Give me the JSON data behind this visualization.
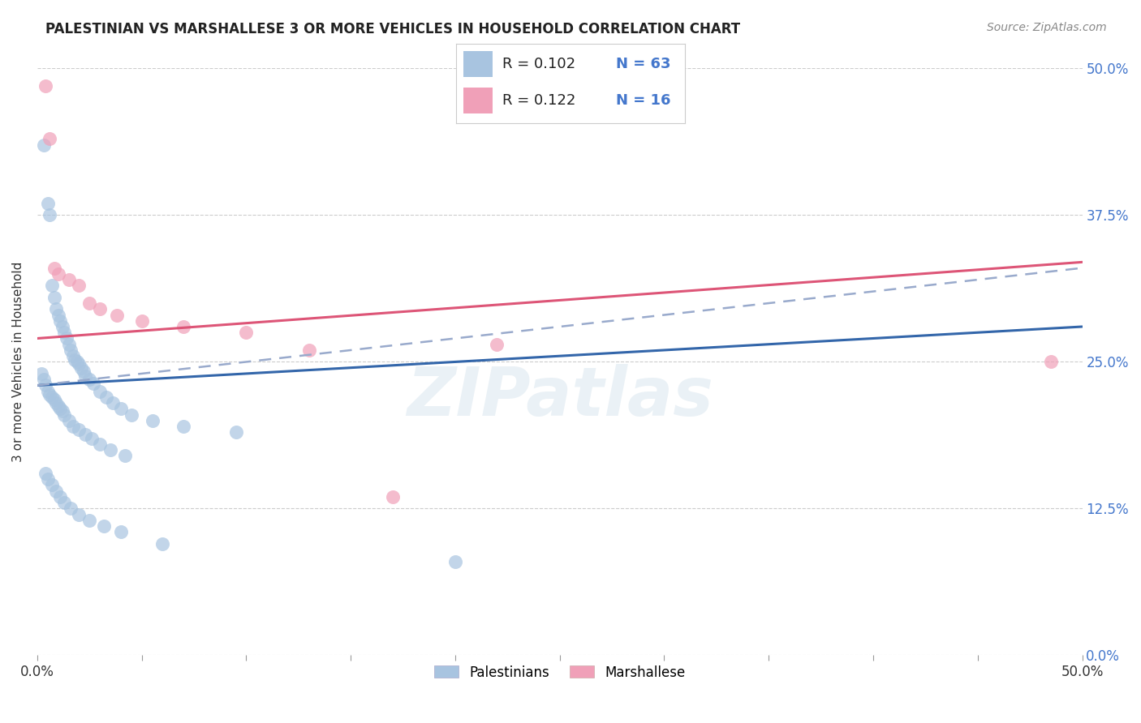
{
  "title": "PALESTINIAN VS MARSHALLESE 3 OR MORE VEHICLES IN HOUSEHOLD CORRELATION CHART",
  "source": "Source: ZipAtlas.com",
  "ylabel": "3 or more Vehicles in Household",
  "xlim": [
    0.0,
    50.0
  ],
  "ylim": [
    0.0,
    50.0
  ],
  "ytick_values": [
    0.0,
    12.5,
    25.0,
    37.5,
    50.0
  ],
  "xtick_minor_values": [
    0.0,
    5.0,
    10.0,
    15.0,
    20.0,
    25.0,
    30.0,
    35.0,
    40.0,
    45.0,
    50.0
  ],
  "watermark": "ZIPatlas",
  "legend_r1": "R = 0.102",
  "legend_n1": "N = 63",
  "legend_r2": "R = 0.122",
  "legend_n2": "N = 16",
  "palestinians_color": "#a8c4e0",
  "marshallese_color": "#f0a0b8",
  "trend_blue_color": "#3366aa",
  "trend_pink_color": "#dd5577",
  "trend_dash_color": "#99aacc",
  "palestinians_label": "Palestinians",
  "marshallese_label": "Marshallese",
  "palestinians_x": [
    0.3,
    0.5,
    0.6,
    0.7,
    0.8,
    0.9,
    1.0,
    1.1,
    1.2,
    1.3,
    1.4,
    1.5,
    1.6,
    1.7,
    1.8,
    1.9,
    2.0,
    2.1,
    2.2,
    2.3,
    2.5,
    2.7,
    3.0,
    3.3,
    3.6,
    4.0,
    4.5,
    5.5,
    7.0,
    9.5,
    0.2,
    0.3,
    0.4,
    0.5,
    0.6,
    0.7,
    0.8,
    0.9,
    1.0,
    1.1,
    1.2,
    1.3,
    1.5,
    1.7,
    2.0,
    2.3,
    2.6,
    3.0,
    3.5,
    4.2,
    0.4,
    0.5,
    0.7,
    0.9,
    1.1,
    1.3,
    1.6,
    2.0,
    2.5,
    3.2,
    4.0,
    6.0,
    20.0
  ],
  "palestinians_y": [
    43.5,
    38.5,
    37.5,
    31.5,
    30.5,
    29.5,
    29.0,
    28.5,
    28.0,
    27.5,
    27.0,
    26.5,
    26.0,
    25.5,
    25.2,
    25.0,
    24.8,
    24.5,
    24.2,
    23.8,
    23.5,
    23.2,
    22.5,
    22.0,
    21.5,
    21.0,
    20.5,
    20.0,
    19.5,
    19.0,
    24.0,
    23.5,
    23.0,
    22.5,
    22.2,
    22.0,
    21.8,
    21.5,
    21.2,
    21.0,
    20.8,
    20.5,
    20.0,
    19.5,
    19.2,
    18.8,
    18.5,
    18.0,
    17.5,
    17.0,
    15.5,
    15.0,
    14.5,
    14.0,
    13.5,
    13.0,
    12.5,
    12.0,
    11.5,
    11.0,
    10.5,
    9.5,
    8.0
  ],
  "marshallese_x": [
    0.4,
    0.6,
    0.8,
    1.0,
    1.5,
    2.0,
    2.5,
    3.0,
    3.8,
    5.0,
    7.0,
    10.0,
    13.0,
    17.0,
    22.0,
    48.5
  ],
  "marshallese_y": [
    48.5,
    44.0,
    33.0,
    32.5,
    32.0,
    31.5,
    30.0,
    29.5,
    29.0,
    28.5,
    28.0,
    27.5,
    26.0,
    13.5,
    26.5,
    25.0
  ],
  "blue_trend": [
    23.0,
    28.0
  ],
  "pink_trend": [
    27.0,
    33.5
  ],
  "dash_trend": [
    23.0,
    33.0
  ]
}
